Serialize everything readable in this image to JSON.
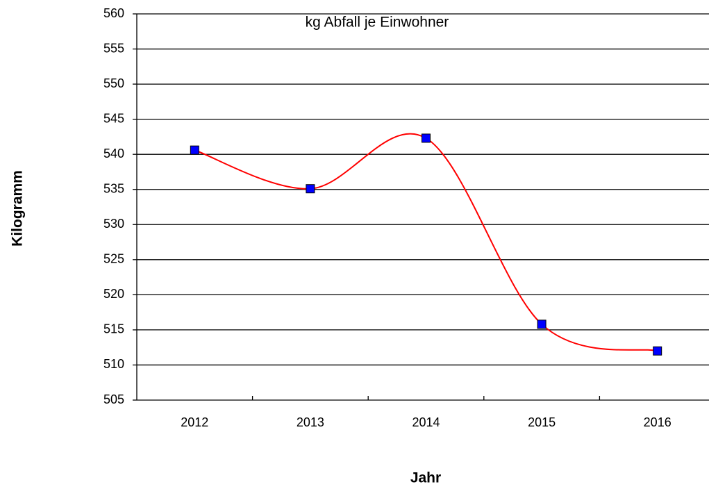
{
  "chart_data": {
    "type": "line",
    "title": "kg Abfall je Einwohner",
    "x_label": "Jahr",
    "y_label": "Kilogramm",
    "categories": [
      "2012",
      "2013",
      "2014",
      "2015",
      "2016"
    ],
    "values": [
      540.6,
      535.1,
      542.3,
      515.8,
      512.0
    ],
    "color": "#ff0000",
    "marker_color": "#0000ff",
    "smooth": true,
    "ylim": [
      505,
      560
    ],
    "yticks": [
      505,
      510,
      515,
      520,
      525,
      530,
      535,
      540,
      545,
      550,
      555,
      560
    ],
    "grid": true
  }
}
